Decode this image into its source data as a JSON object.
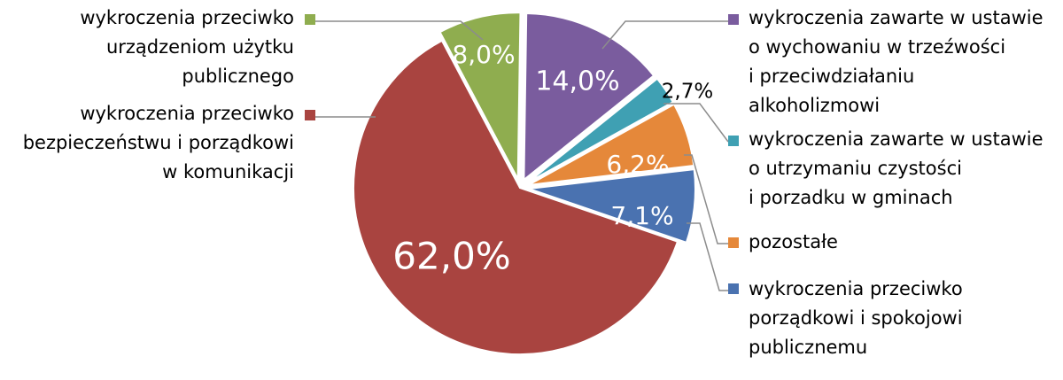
{
  "chart_data": {
    "type": "pie",
    "title": "",
    "slices": [
      {
        "label": "wykroczenia zawarte w ustawie\no wychowaniu w trzeźwości\ni przeciwdziałaniu\nalkoholizmowi",
        "value": 14.0,
        "value_label": "14,0%",
        "color": "#7a5c9e"
      },
      {
        "label": "wykroczenia zawarte w ustawie\no utrzymaniu czystości\ni porzadku w gminach",
        "value": 2.7,
        "value_label": "2,7%",
        "color": "#3fa0b3"
      },
      {
        "label": "pozostałe",
        "value": 6.2,
        "value_label": "6,2%",
        "color": "#e5883a"
      },
      {
        "label": "wykroczenia przeciwko\nporządkowi i spokojowi\npublicznemu",
        "value": 7.1,
        "value_label": "7,1%",
        "color": "#4a72b0"
      },
      {
        "label": "wykroczenia przeciwko\nbezpieczeństwu i porządkowi\nw komunikacji",
        "value": 62.0,
        "value_label": "62,0%",
        "color": "#a94440"
      },
      {
        "label": "wykroczenia przeciwko\nurządzeniom użytku\npublicznego",
        "value": 8.0,
        "value_label": "8,0%",
        "color": "#8fad4f"
      }
    ]
  }
}
